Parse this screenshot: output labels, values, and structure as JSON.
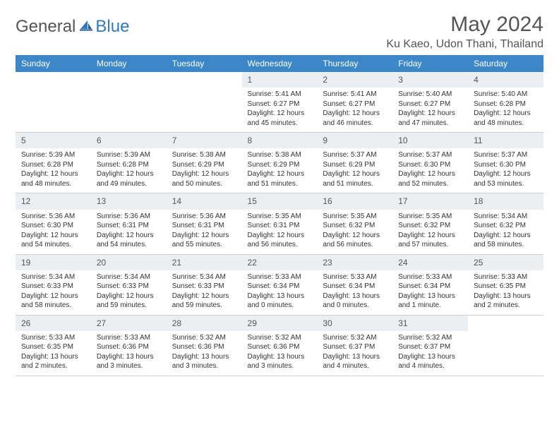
{
  "colors": {
    "header_bg": "#3b87c8",
    "header_text": "#ffffff",
    "daynum_bg": "#eceff1",
    "body_text": "#333333",
    "muted_text": "#555555",
    "brand_text1": "#555555",
    "brand_text2": "#2f7ac0"
  },
  "brand": {
    "part1": "General",
    "part2": "Blue"
  },
  "title": "May 2024",
  "location": "Ku Kaeo, Udon Thani, Thailand",
  "day_headers": [
    "Sunday",
    "Monday",
    "Tuesday",
    "Wednesday",
    "Thursday",
    "Friday",
    "Saturday"
  ],
  "weeks": [
    [
      null,
      null,
      null,
      {
        "n": "1",
        "sr": "Sunrise: 5:41 AM",
        "ss": "Sunset: 6:27 PM",
        "dl": "Daylight: 12 hours and 45 minutes."
      },
      {
        "n": "2",
        "sr": "Sunrise: 5:41 AM",
        "ss": "Sunset: 6:27 PM",
        "dl": "Daylight: 12 hours and 46 minutes."
      },
      {
        "n": "3",
        "sr": "Sunrise: 5:40 AM",
        "ss": "Sunset: 6:27 PM",
        "dl": "Daylight: 12 hours and 47 minutes."
      },
      {
        "n": "4",
        "sr": "Sunrise: 5:40 AM",
        "ss": "Sunset: 6:28 PM",
        "dl": "Daylight: 12 hours and 48 minutes."
      }
    ],
    [
      {
        "n": "5",
        "sr": "Sunrise: 5:39 AM",
        "ss": "Sunset: 6:28 PM",
        "dl": "Daylight: 12 hours and 48 minutes."
      },
      {
        "n": "6",
        "sr": "Sunrise: 5:39 AM",
        "ss": "Sunset: 6:28 PM",
        "dl": "Daylight: 12 hours and 49 minutes."
      },
      {
        "n": "7",
        "sr": "Sunrise: 5:38 AM",
        "ss": "Sunset: 6:29 PM",
        "dl": "Daylight: 12 hours and 50 minutes."
      },
      {
        "n": "8",
        "sr": "Sunrise: 5:38 AM",
        "ss": "Sunset: 6:29 PM",
        "dl": "Daylight: 12 hours and 51 minutes."
      },
      {
        "n": "9",
        "sr": "Sunrise: 5:37 AM",
        "ss": "Sunset: 6:29 PM",
        "dl": "Daylight: 12 hours and 51 minutes."
      },
      {
        "n": "10",
        "sr": "Sunrise: 5:37 AM",
        "ss": "Sunset: 6:30 PM",
        "dl": "Daylight: 12 hours and 52 minutes."
      },
      {
        "n": "11",
        "sr": "Sunrise: 5:37 AM",
        "ss": "Sunset: 6:30 PM",
        "dl": "Daylight: 12 hours and 53 minutes."
      }
    ],
    [
      {
        "n": "12",
        "sr": "Sunrise: 5:36 AM",
        "ss": "Sunset: 6:30 PM",
        "dl": "Daylight: 12 hours and 54 minutes."
      },
      {
        "n": "13",
        "sr": "Sunrise: 5:36 AM",
        "ss": "Sunset: 6:31 PM",
        "dl": "Daylight: 12 hours and 54 minutes."
      },
      {
        "n": "14",
        "sr": "Sunrise: 5:36 AM",
        "ss": "Sunset: 6:31 PM",
        "dl": "Daylight: 12 hours and 55 minutes."
      },
      {
        "n": "15",
        "sr": "Sunrise: 5:35 AM",
        "ss": "Sunset: 6:31 PM",
        "dl": "Daylight: 12 hours and 56 minutes."
      },
      {
        "n": "16",
        "sr": "Sunrise: 5:35 AM",
        "ss": "Sunset: 6:32 PM",
        "dl": "Daylight: 12 hours and 56 minutes."
      },
      {
        "n": "17",
        "sr": "Sunrise: 5:35 AM",
        "ss": "Sunset: 6:32 PM",
        "dl": "Daylight: 12 hours and 57 minutes."
      },
      {
        "n": "18",
        "sr": "Sunrise: 5:34 AM",
        "ss": "Sunset: 6:32 PM",
        "dl": "Daylight: 12 hours and 58 minutes."
      }
    ],
    [
      {
        "n": "19",
        "sr": "Sunrise: 5:34 AM",
        "ss": "Sunset: 6:33 PM",
        "dl": "Daylight: 12 hours and 58 minutes."
      },
      {
        "n": "20",
        "sr": "Sunrise: 5:34 AM",
        "ss": "Sunset: 6:33 PM",
        "dl": "Daylight: 12 hours and 59 minutes."
      },
      {
        "n": "21",
        "sr": "Sunrise: 5:34 AM",
        "ss": "Sunset: 6:33 PM",
        "dl": "Daylight: 12 hours and 59 minutes."
      },
      {
        "n": "22",
        "sr": "Sunrise: 5:33 AM",
        "ss": "Sunset: 6:34 PM",
        "dl": "Daylight: 13 hours and 0 minutes."
      },
      {
        "n": "23",
        "sr": "Sunrise: 5:33 AM",
        "ss": "Sunset: 6:34 PM",
        "dl": "Daylight: 13 hours and 0 minutes."
      },
      {
        "n": "24",
        "sr": "Sunrise: 5:33 AM",
        "ss": "Sunset: 6:34 PM",
        "dl": "Daylight: 13 hours and 1 minute."
      },
      {
        "n": "25",
        "sr": "Sunrise: 5:33 AM",
        "ss": "Sunset: 6:35 PM",
        "dl": "Daylight: 13 hours and 2 minutes."
      }
    ],
    [
      {
        "n": "26",
        "sr": "Sunrise: 5:33 AM",
        "ss": "Sunset: 6:35 PM",
        "dl": "Daylight: 13 hours and 2 minutes."
      },
      {
        "n": "27",
        "sr": "Sunrise: 5:33 AM",
        "ss": "Sunset: 6:36 PM",
        "dl": "Daylight: 13 hours and 3 minutes."
      },
      {
        "n": "28",
        "sr": "Sunrise: 5:32 AM",
        "ss": "Sunset: 6:36 PM",
        "dl": "Daylight: 13 hours and 3 minutes."
      },
      {
        "n": "29",
        "sr": "Sunrise: 5:32 AM",
        "ss": "Sunset: 6:36 PM",
        "dl": "Daylight: 13 hours and 3 minutes."
      },
      {
        "n": "30",
        "sr": "Sunrise: 5:32 AM",
        "ss": "Sunset: 6:37 PM",
        "dl": "Daylight: 13 hours and 4 minutes."
      },
      {
        "n": "31",
        "sr": "Sunrise: 5:32 AM",
        "ss": "Sunset: 6:37 PM",
        "dl": "Daylight: 13 hours and 4 minutes."
      },
      null
    ]
  ]
}
